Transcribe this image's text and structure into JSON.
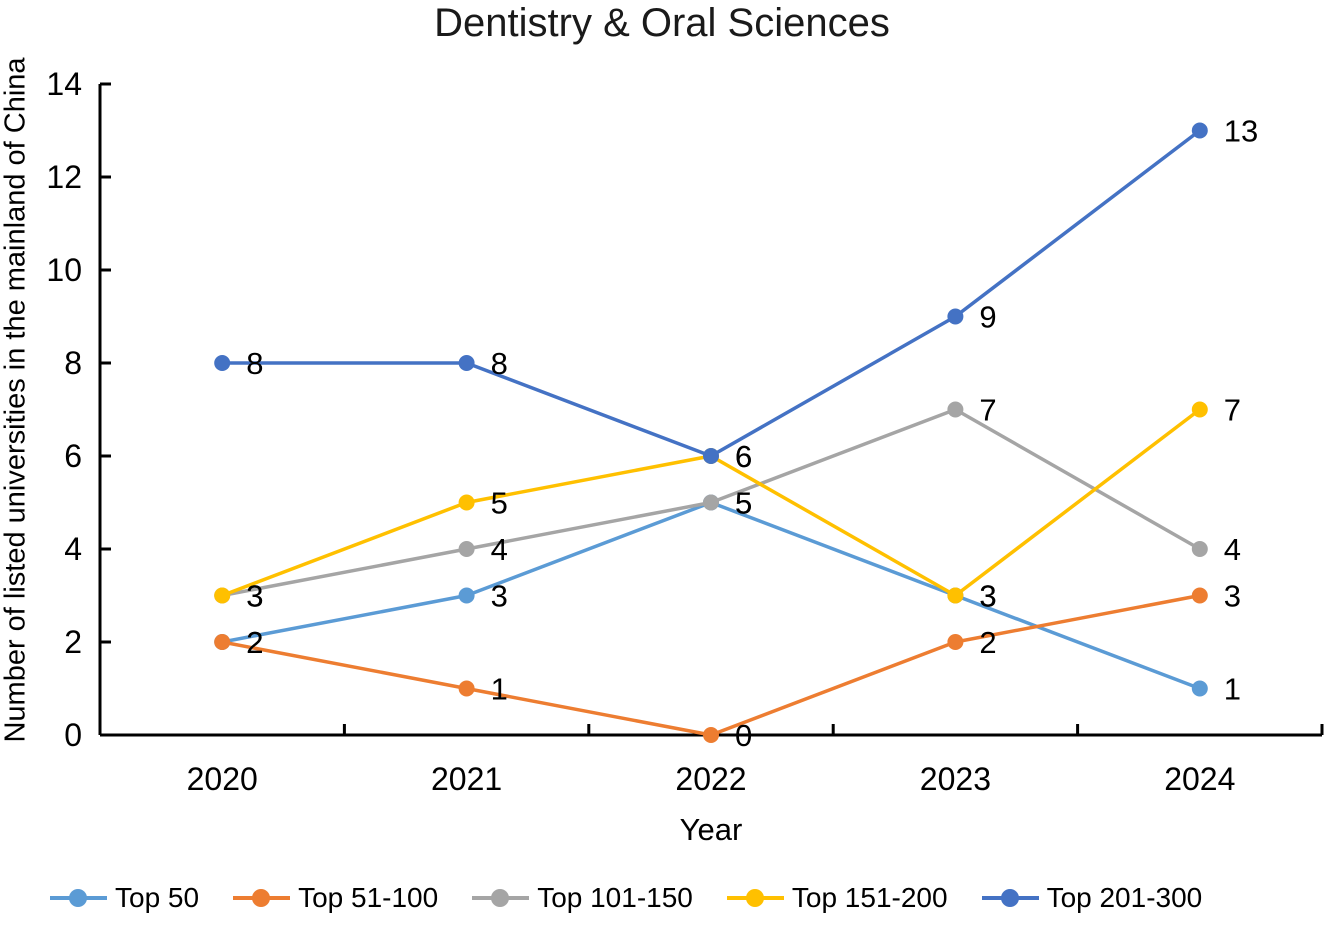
{
  "title": "Dentistry & Oral Sciences",
  "chart_data": {
    "type": "line",
    "x": [
      "2020",
      "2021",
      "2022",
      "2023",
      "2024"
    ],
    "xlabel": "Year",
    "ylabel": "Number of listed universities in the mainland of China",
    "ylim": [
      0,
      14
    ],
    "ytick_step": 2,
    "yticks": [
      0,
      2,
      4,
      6,
      8,
      10,
      12,
      14
    ],
    "grid": false,
    "data_labels": true,
    "legend_position": "bottom",
    "axis_color": "#000000",
    "series": [
      {
        "name": "Top 50",
        "color": "#5B9BD5",
        "values": [
          2,
          3,
          5,
          3,
          1
        ]
      },
      {
        "name": "Top 51-100",
        "color": "#ED7D31",
        "values": [
          2,
          1,
          0,
          2,
          3
        ]
      },
      {
        "name": "Top 101-150",
        "color": "#A5A5A5",
        "values": [
          3,
          4,
          5,
          7,
          4
        ]
      },
      {
        "name": "Top 151-200",
        "color": "#FFC000",
        "values": [
          3,
          5,
          6,
          3,
          7
        ]
      },
      {
        "name": "Top 201-300",
        "color": "#4472C4",
        "values": [
          8,
          8,
          6,
          9,
          13
        ]
      }
    ]
  }
}
